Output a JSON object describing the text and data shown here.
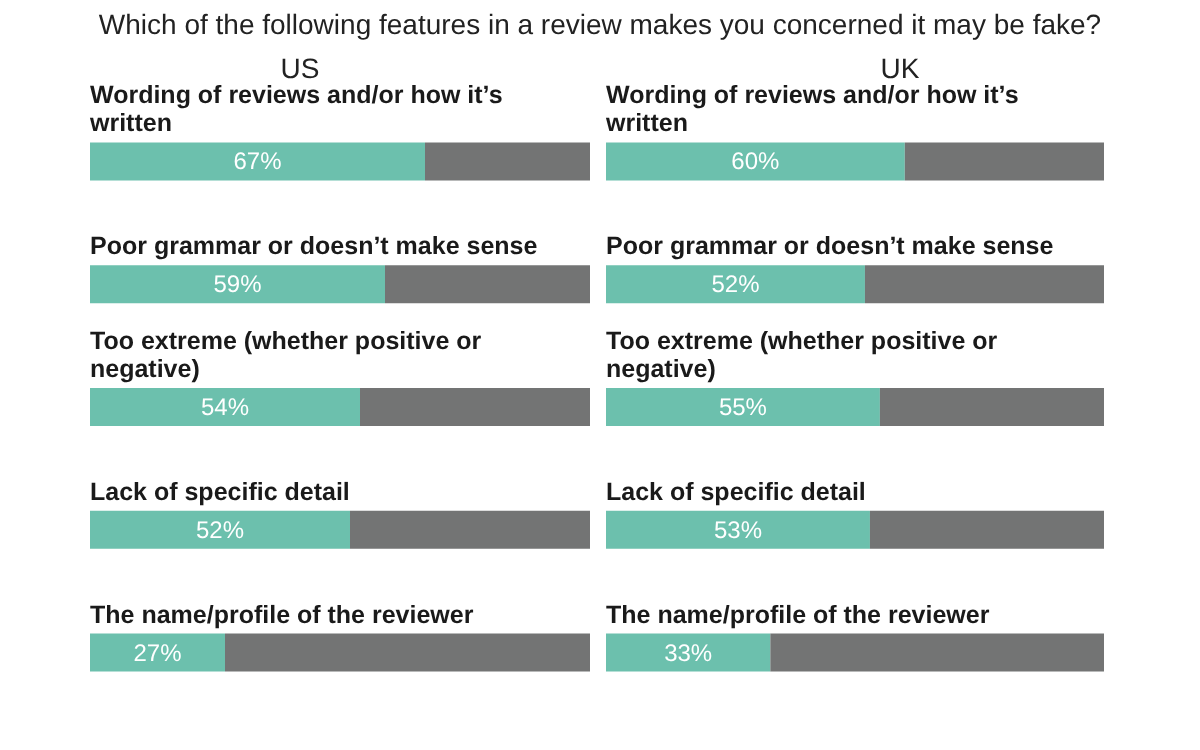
{
  "chart_data": [
    {
      "type": "bar",
      "title": "Which of the following features in a review makes you concerned it may be fake?",
      "subtitle": "US",
      "orientation": "horizontal",
      "stacked": true,
      "xlim": [
        0,
        100
      ],
      "tick_labels": false,
      "categories": [
        "Wording of reviews and/or how it’s written",
        "Poor grammar or doesn’t make sense",
        "Too extreme (whether positive or negative)",
        "Lack of specific detail",
        "The name/profile of the reviewer"
      ],
      "series": [
        {
          "color": "#6cc0ad",
          "values": [
            67,
            59,
            54,
            52,
            27
          ],
          "value_labels": [
            "67%",
            "59%",
            "54%",
            "52%",
            "27%"
          ]
        },
        {
          "color": "#737474",
          "values": [
            33,
            41,
            46,
            48,
            73
          ]
        }
      ]
    },
    {
      "type": "bar",
      "subtitle": "UK",
      "orientation": "horizontal",
      "stacked": true,
      "xlim": [
        0,
        100
      ],
      "tick_labels": false,
      "categories": [
        "Wording of reviews and/or how it’s written",
        "Poor grammar or doesn’t make sense",
        "Too extreme (whether positive or negative)",
        "Lack of specific detail",
        "The name/profile of the reviewer"
      ],
      "series": [
        {
          "color": "#6cc0ad",
          "values": [
            60,
            52,
            55,
            53,
            33
          ],
          "value_labels": [
            "60%",
            "52%",
            "55%",
            "53%",
            "33%"
          ]
        },
        {
          "color": "#737474",
          "values": [
            40,
            48,
            45,
            47,
            67
          ]
        }
      ]
    }
  ]
}
